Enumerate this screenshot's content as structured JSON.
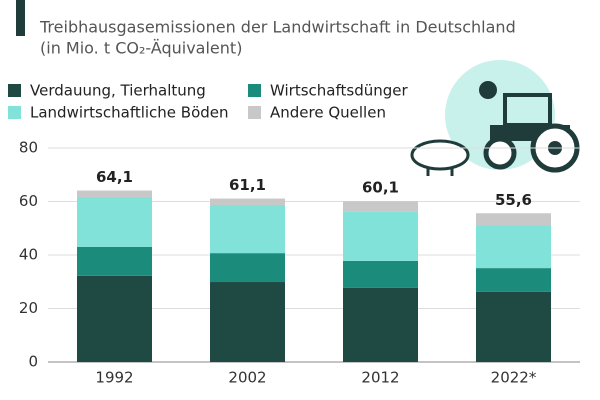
{
  "chart_data": {
    "type": "stacked-bar",
    "subtitle": "Treibhausgasemissionen der Landwirtschaft in Deutschland",
    "subtitle2": "(in Mio. t CO₂-Äquivalent)",
    "categories": [
      "1992",
      "2002",
      "2012",
      "2022*"
    ],
    "series": [
      {
        "name": "Verdauung, Tierhaltung",
        "color": "#1f4a43",
        "values": [
          32.2,
          29.9,
          27.7,
          26.2
        ]
      },
      {
        "name": "Wirtschaftsdünger",
        "color": "#1b8b7b",
        "values": [
          10.8,
          10.8,
          10.1,
          8.9
        ]
      },
      {
        "name": "Landwirtschaftliche Böden",
        "color": "#80e2d9",
        "values": [
          18.7,
          18.0,
          18.3,
          16.1
        ]
      },
      {
        "name": "Andere Quellen",
        "color": "#c8c8c8",
        "values": [
          2.4,
          2.4,
          4.0,
          4.4
        ]
      }
    ],
    "totals": [
      64.1,
      61.1,
      60.1,
      55.6
    ],
    "total_labels": [
      "64,1",
      "61,1",
      "60,1",
      "55,6"
    ],
    "ylim": [
      0,
      80
    ],
    "yticks": [
      0,
      20,
      40,
      60,
      80
    ],
    "grid": true
  }
}
